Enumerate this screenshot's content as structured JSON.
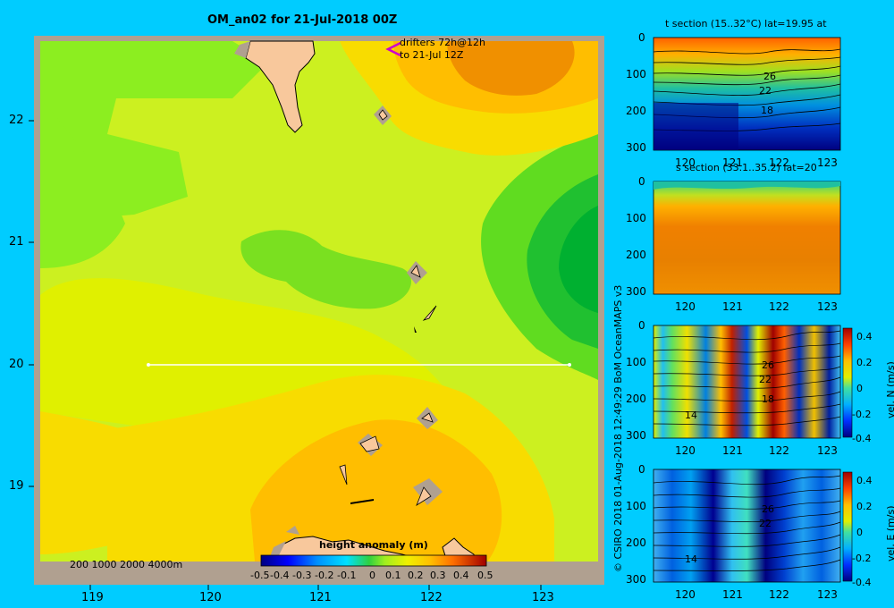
{
  "main_map": {
    "title": "OM_an02 for 21-Jul-2018 00Z",
    "drifters_line1": "drifters 72h@12h",
    "drifters_line2": "to 21-Jul 12Z",
    "lon_ticks": [
      "119",
      "120",
      "121",
      "122",
      "123"
    ],
    "lat_ticks": [
      "22",
      "21",
      "20",
      "19"
    ],
    "depth_legend": "200  1000  2000  4000m",
    "section_line": {
      "lat": 20,
      "lon_from": 119.5,
      "lon_to": 123.2
    },
    "colorbar": {
      "label": "height anomaly  (m)",
      "ticks": [
        "-0.5",
        "-0.4",
        "-0.3",
        "-0.2",
        "-0.1",
        "0",
        "0.1",
        "0.2",
        "0.3",
        "0.4",
        "0.5"
      ],
      "range": [
        -0.5,
        0.5
      ]
    },
    "colors": {
      "background": "#00ccff",
      "land": "#f8c89c",
      "shelf": "#b0a090",
      "section_line": "#ffffff",
      "drifter_arrow": "#cc00cc"
    }
  },
  "credit": "© CSIRO 2018   01-Aug-2018 12:49:29 BoM OceanMAPS v3",
  "panels": [
    {
      "id": "t",
      "title": "t section (15..32°C) lat=19.95 at",
      "y_ticks": [
        "0",
        "100",
        "200",
        "300"
      ],
      "x_ticks": [
        "120",
        "121",
        "122",
        "123"
      ],
      "contour_labels": [
        "26",
        "22",
        "18"
      ]
    },
    {
      "id": "s",
      "title": "s section (33.1..35.2) lat=20",
      "y_ticks": [
        "0",
        "100",
        "200",
        "300"
      ],
      "x_ticks": [
        "120",
        "121",
        "122",
        "123"
      ]
    },
    {
      "id": "vn",
      "y_ticks": [
        "0",
        "100",
        "200",
        "300"
      ],
      "x_ticks": [
        "120",
        "121",
        "122",
        "123"
      ],
      "contour_labels": [
        "26",
        "22",
        "18",
        "14"
      ],
      "cbar_label": "vel. N (m/s)",
      "cbar_ticks": [
        "0.4",
        "0.2",
        "0",
        "-0.2",
        "-0.4"
      ]
    },
    {
      "id": "ve",
      "y_ticks": [
        "0",
        "100",
        "200",
        "300"
      ],
      "x_ticks": [
        "120",
        "121",
        "122",
        "123"
      ],
      "contour_labels": [
        "26",
        "22",
        "14"
      ],
      "cbar_label": "vel. E (m/s)",
      "cbar_ticks": [
        "0.4",
        "0.2",
        "0",
        "-0.2",
        "-0.4"
      ]
    }
  ]
}
